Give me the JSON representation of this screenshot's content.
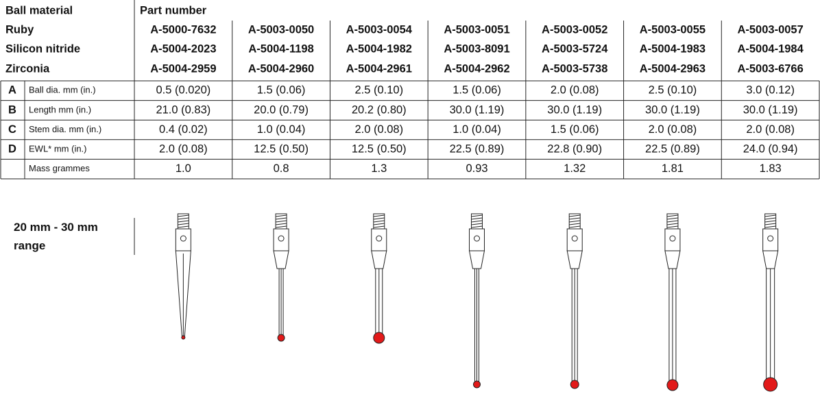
{
  "header": {
    "ball_material": "Ball material",
    "part_number": "Part number"
  },
  "materials": [
    {
      "name": "Ruby",
      "parts": [
        "A-5000-7632",
        "A-5003-0050",
        "A-5003-0054",
        "A-5003-0051",
        "A-5003-0052",
        "A-5003-0055",
        "A-5003-0057"
      ]
    },
    {
      "name": "Silicon nitride",
      "parts": [
        "A-5004-2023",
        "A-5004-1198",
        "A-5004-1982",
        "A-5003-8091",
        "A-5003-5724",
        "A-5004-1983",
        "A-5004-1984"
      ]
    },
    {
      "name": "Zirconia",
      "parts": [
        "A-5004-2959",
        "A-5004-2960",
        "A-5004-2961",
        "A-5004-2962",
        "A-5003-5738",
        "A-5004-2963",
        "A-5003-6766"
      ]
    }
  ],
  "specs": [
    {
      "letter": "A",
      "label": "Ball dia. mm (in.)",
      "values": [
        "0.5 (0.020)",
        "1.5 (0.06)",
        "2.5 (0.10)",
        "1.5 (0.06)",
        "2.0 (0.08)",
        "2.5 (0.10)",
        "3.0 (0.12)"
      ]
    },
    {
      "letter": "B",
      "label": "Length mm (in.)",
      "values": [
        "21.0 (0.83)",
        "20.0 (0.79)",
        "20.2 (0.80)",
        "30.0 (1.19)",
        "30.0 (1.19)",
        "30.0 (1.19)",
        "30.0 (1.19)"
      ]
    },
    {
      "letter": "C",
      "label": "Stem dia. mm (in.)",
      "values": [
        "0.4 (0.02)",
        "1.0 (0.04)",
        "2.0 (0.08)",
        "1.0 (0.04)",
        "1.5 (0.06)",
        "2.0 (0.08)",
        "2.0 (0.08)"
      ]
    },
    {
      "letter": "D",
      "label": "EWL* mm (in.)",
      "values": [
        "2.0 (0.08)",
        "12.5 (0.50)",
        "12.5 (0.50)",
        "22.5 (0.89)",
        "22.8 (0.90)",
        "22.5 (0.89)",
        "24.0 (0.94)"
      ]
    },
    {
      "label": "Mass grammes",
      "values": [
        "1.0",
        "0.8",
        "1.3",
        "0.93",
        "1.32",
        "1.81",
        "1.83"
      ]
    }
  ],
  "range_label": "20 mm - 30 mm range"
}
